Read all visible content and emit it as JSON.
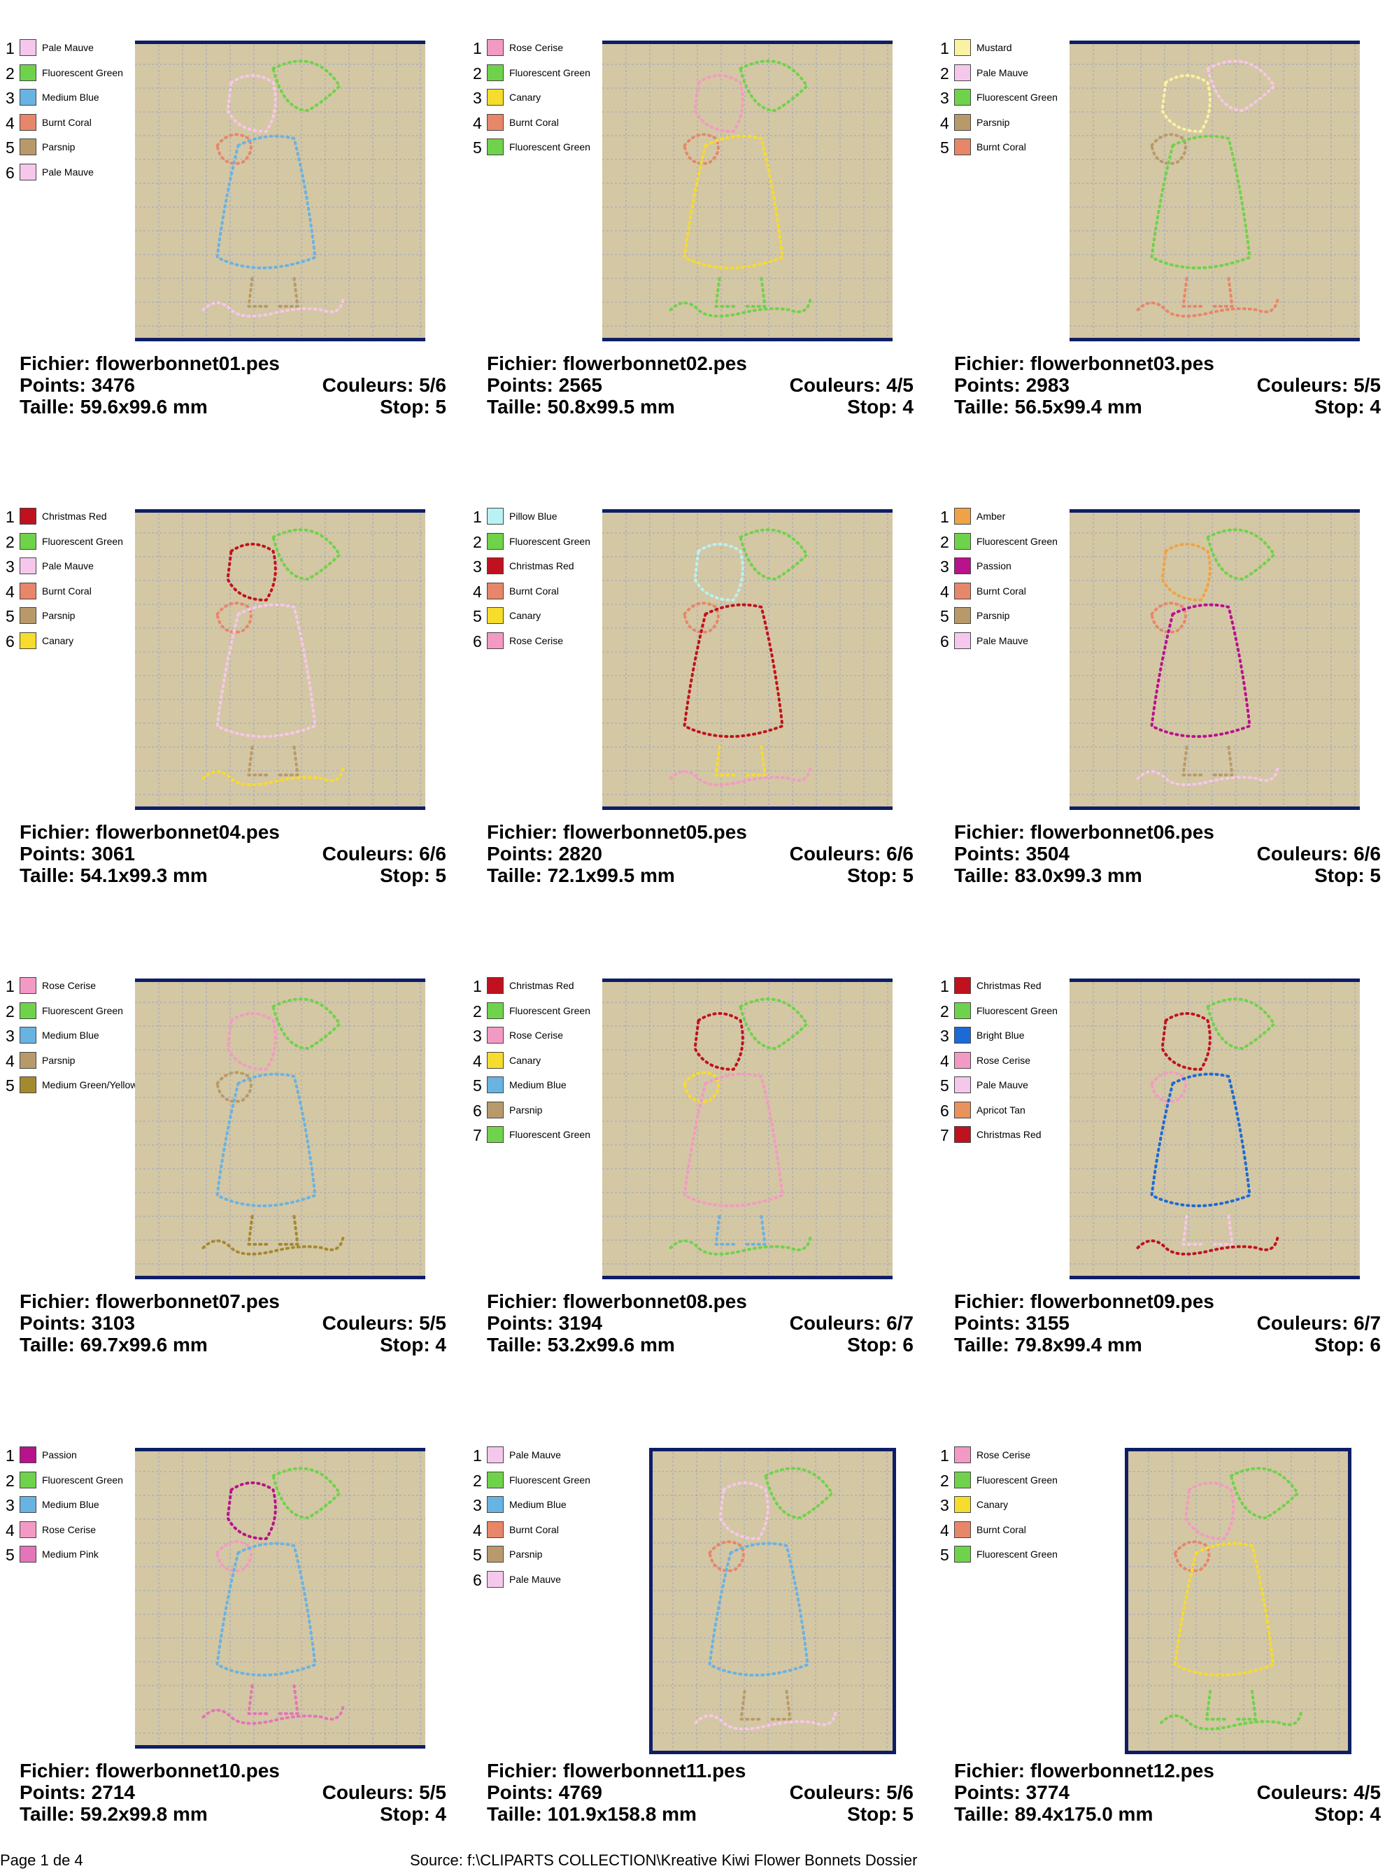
{
  "footer": {
    "page": "Page 1 de 4",
    "source": "Source: f:\\CLIPARTS COLLECTION\\Kreative Kiwi Flower Bonnets Dossier"
  },
  "labels": {
    "file": "Fichier:",
    "points": "Points:",
    "colors": "Couleurs:",
    "size": "Taille:",
    "stop": "Stop:"
  },
  "designs": [
    {
      "file": "flowerbonnet01.pes",
      "points": "3476",
      "colors": "5/6",
      "size": "59.6x99.6 mm",
      "stop": "5",
      "palette": [
        {
          "n": "1",
          "name": "Pale Mauve",
          "color": "#f6c7ec"
        },
        {
          "n": "2",
          "name": "Fluorescent Green",
          "color": "#6ed34a"
        },
        {
          "n": "3",
          "name": "Medium Blue",
          "color": "#69b3e3"
        },
        {
          "n": "4",
          "name": "Burnt Coral",
          "color": "#e8866a"
        },
        {
          "n": "5",
          "name": "Parsnip",
          "color": "#b89a6a"
        },
        {
          "n": "6",
          "name": "Pale Mauve",
          "color": "#f6c7ec"
        }
      ]
    },
    {
      "file": "flowerbonnet02.pes",
      "points": "2565",
      "colors": "4/5",
      "size": "50.8x99.5 mm",
      "stop": "4",
      "palette": [
        {
          "n": "1",
          "name": "Rose Cerise",
          "color": "#f39ac4"
        },
        {
          "n": "2",
          "name": "Fluorescent Green",
          "color": "#6ed34a"
        },
        {
          "n": "3",
          "name": "Canary",
          "color": "#f6dc2c"
        },
        {
          "n": "4",
          "name": "Burnt Coral",
          "color": "#e8866a"
        },
        {
          "n": "5",
          "name": "Fluorescent Green",
          "color": "#6ed34a"
        }
      ]
    },
    {
      "file": "flowerbonnet03.pes",
      "points": "2983",
      "colors": "5/5",
      "size": "56.5x99.4 mm",
      "stop": "4",
      "palette": [
        {
          "n": "1",
          "name": "Mustard",
          "color": "#f9f2a2"
        },
        {
          "n": "2",
          "name": "Pale Mauve",
          "color": "#f6c7ec"
        },
        {
          "n": "3",
          "name": "Fluorescent Green",
          "color": "#6ed34a"
        },
        {
          "n": "4",
          "name": "Parsnip",
          "color": "#b89a6a"
        },
        {
          "n": "5",
          "name": "Burnt Coral",
          "color": "#e8866a"
        }
      ]
    },
    {
      "file": "flowerbonnet04.pes",
      "points": "3061",
      "colors": "6/6",
      "size": "54.1x99.3 mm",
      "stop": "5",
      "palette": [
        {
          "n": "1",
          "name": "Christmas Red",
          "color": "#c0121e"
        },
        {
          "n": "2",
          "name": "Fluorescent Green",
          "color": "#6ed34a"
        },
        {
          "n": "3",
          "name": "Pale Mauve",
          "color": "#f6c7ec"
        },
        {
          "n": "4",
          "name": "Burnt Coral",
          "color": "#e8866a"
        },
        {
          "n": "5",
          "name": "Parsnip",
          "color": "#b89a6a"
        },
        {
          "n": "6",
          "name": "Canary",
          "color": "#f6dc2c"
        }
      ]
    },
    {
      "file": "flowerbonnet05.pes",
      "points": "2820",
      "colors": "6/6",
      "size": "72.1x99.5 mm",
      "stop": "5",
      "palette": [
        {
          "n": "1",
          "name": "Pillow Blue",
          "color": "#b8f2f4"
        },
        {
          "n": "2",
          "name": "Fluorescent Green",
          "color": "#6ed34a"
        },
        {
          "n": "3",
          "name": "Christmas Red",
          "color": "#c0121e"
        },
        {
          "n": "4",
          "name": "Burnt Coral",
          "color": "#e8866a"
        },
        {
          "n": "5",
          "name": "Canary",
          "color": "#f6dc2c"
        },
        {
          "n": "6",
          "name": "Rose Cerise",
          "color": "#f39ac4"
        }
      ]
    },
    {
      "file": "flowerbonnet06.pes",
      "points": "3504",
      "colors": "6/6",
      "size": "83.0x99.3 mm",
      "stop": "5",
      "palette": [
        {
          "n": "1",
          "name": "Amber",
          "color": "#efa346"
        },
        {
          "n": "2",
          "name": "Fluorescent Green",
          "color": "#6ed34a"
        },
        {
          "n": "3",
          "name": "Passion",
          "color": "#b8128c"
        },
        {
          "n": "4",
          "name": "Burnt Coral",
          "color": "#e8866a"
        },
        {
          "n": "5",
          "name": "Parsnip",
          "color": "#b89a6a"
        },
        {
          "n": "6",
          "name": "Pale Mauve",
          "color": "#f6c7ec"
        }
      ]
    },
    {
      "file": "flowerbonnet07.pes",
      "points": "3103",
      "colors": "5/5",
      "size": "69.7x99.6 mm",
      "stop": "4",
      "palette": [
        {
          "n": "1",
          "name": "Rose Cerise",
          "color": "#f39ac4"
        },
        {
          "n": "2",
          "name": "Fluorescent Green",
          "color": "#6ed34a"
        },
        {
          "n": "3",
          "name": "Medium Blue",
          "color": "#69b3e3"
        },
        {
          "n": "4",
          "name": "Parsnip",
          "color": "#b89a6a"
        },
        {
          "n": "5",
          "name": "Medium Green/Yellow",
          "color": "#a48a2e"
        }
      ]
    },
    {
      "file": "flowerbonnet08.pes",
      "points": "3194",
      "colors": "6/7",
      "size": "53.2x99.6 mm",
      "stop": "6",
      "palette": [
        {
          "n": "1",
          "name": "Christmas Red",
          "color": "#c0121e"
        },
        {
          "n": "2",
          "name": "Fluorescent Green",
          "color": "#6ed34a"
        },
        {
          "n": "3",
          "name": "Rose Cerise",
          "color": "#f39ac4"
        },
        {
          "n": "4",
          "name": "Canary",
          "color": "#f6dc2c"
        },
        {
          "n": "5",
          "name": "Medium Blue",
          "color": "#69b3e3"
        },
        {
          "n": "6",
          "name": "Parsnip",
          "color": "#b89a6a"
        },
        {
          "n": "7",
          "name": "Fluorescent Green",
          "color": "#6ed34a"
        }
      ]
    },
    {
      "file": "flowerbonnet09.pes",
      "points": "3155",
      "colors": "6/7",
      "size": "79.8x99.4 mm",
      "stop": "6",
      "palette": [
        {
          "n": "1",
          "name": "Christmas Red",
          "color": "#c0121e"
        },
        {
          "n": "2",
          "name": "Fluorescent Green",
          "color": "#6ed34a"
        },
        {
          "n": "3",
          "name": "Bright Blue",
          "color": "#1c6ad6"
        },
        {
          "n": "4",
          "name": "Rose Cerise",
          "color": "#f39ac4"
        },
        {
          "n": "5",
          "name": "Pale Mauve",
          "color": "#f6c7ec"
        },
        {
          "n": "6",
          "name": "Apricot Tan",
          "color": "#e9925a"
        },
        {
          "n": "7",
          "name": "Christmas Red",
          "color": "#c0121e"
        }
      ]
    },
    {
      "file": "flowerbonnet10.pes",
      "points": "2714",
      "colors": "5/5",
      "size": "59.2x99.8 mm",
      "stop": "4",
      "palette": [
        {
          "n": "1",
          "name": "Passion",
          "color": "#b8128c"
        },
        {
          "n": "2",
          "name": "Fluorescent Green",
          "color": "#6ed34a"
        },
        {
          "n": "3",
          "name": "Medium Blue",
          "color": "#69b3e3"
        },
        {
          "n": "4",
          "name": "Rose Cerise",
          "color": "#f39ac4"
        },
        {
          "n": "5",
          "name": "Medium Pink",
          "color": "#e475b8"
        }
      ]
    },
    {
      "file": "flowerbonnet11.pes",
      "points": "4769",
      "colors": "5/6",
      "size": "101.9x158.8 mm",
      "stop": "5",
      "palette": [
        {
          "n": "1",
          "name": "Pale Mauve",
          "color": "#f6c7ec"
        },
        {
          "n": "2",
          "name": "Fluorescent Green",
          "color": "#6ed34a"
        },
        {
          "n": "3",
          "name": "Medium Blue",
          "color": "#69b3e3"
        },
        {
          "n": "4",
          "name": "Burnt Coral",
          "color": "#e8866a"
        },
        {
          "n": "5",
          "name": "Parsnip",
          "color": "#b89a6a"
        },
        {
          "n": "6",
          "name": "Pale Mauve",
          "color": "#f6c7ec"
        }
      ]
    },
    {
      "file": "flowerbonnet12.pes",
      "points": "3774",
      "colors": "4/5",
      "size": "89.4x175.0 mm",
      "stop": "4",
      "palette": [
        {
          "n": "1",
          "name": "Rose Cerise",
          "color": "#f39ac4"
        },
        {
          "n": "2",
          "name": "Fluorescent Green",
          "color": "#6ed34a"
        },
        {
          "n": "3",
          "name": "Canary",
          "color": "#f6dc2c"
        },
        {
          "n": "4",
          "name": "Burnt Coral",
          "color": "#e8866a"
        },
        {
          "n": "5",
          "name": "Fluorescent Green",
          "color": "#6ed34a"
        }
      ]
    }
  ]
}
